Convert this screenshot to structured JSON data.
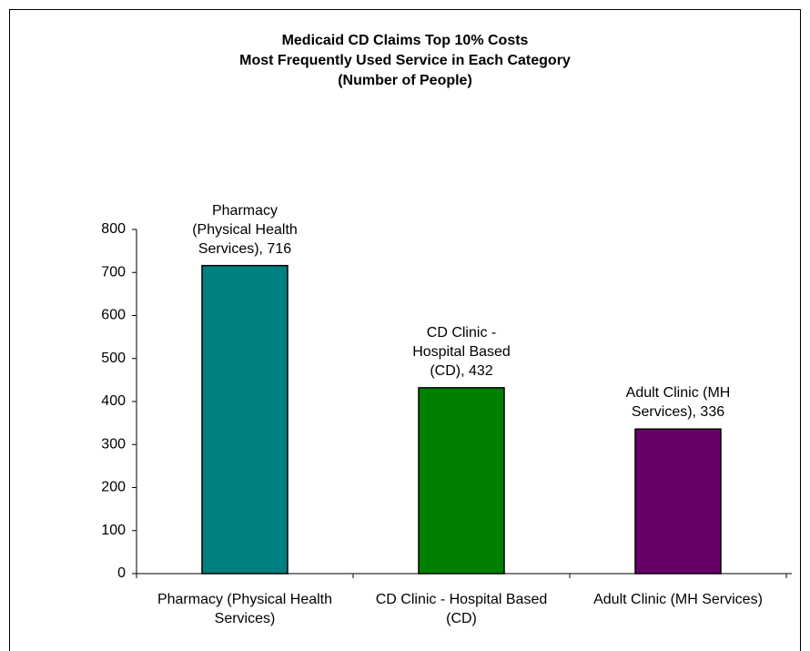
{
  "chart_data": {
    "type": "bar",
    "title": [
      "Medicaid CD Claims Top 10% Costs",
      "Most Frequently Used Service in Each Category",
      "(Number of People)"
    ],
    "categories": [
      "Pharmacy (Physical Health Services)",
      "CD Clinic - Hospital Based (CD)",
      "Adult Clinic (MH Services)"
    ],
    "values": [
      716,
      432,
      336
    ],
    "value_labels": [
      "Pharmacy (Physical Health Services), 716",
      "CD Clinic - Hospital Based (CD), 432",
      "Adult Clinic (MH Services), 336"
    ],
    "colors": [
      "#008080",
      "#008000",
      "#660066"
    ],
    "ylim": [
      0,
      800
    ],
    "yticks": [
      0,
      100,
      200,
      300,
      400,
      500,
      600,
      700,
      800
    ],
    "grid": false
  }
}
